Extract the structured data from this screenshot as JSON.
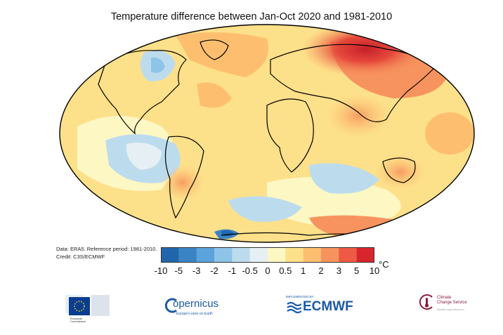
{
  "title": "Temperature difference between Jan-Oct 2020 and 1981-2010",
  "credit": {
    "data_line": "Data: ERA5.  Reference period: 1981-2010.",
    "credit_line": "Credit: C3S/ECMWF"
  },
  "legend": {
    "unit": "°C",
    "ticks": [
      "-10",
      "-5",
      "-3",
      "-2",
      "-1",
      "-0.5",
      "0",
      "0.5",
      "1",
      "2",
      "3",
      "5",
      "10"
    ],
    "colors": [
      "#2166ac",
      "#3a84c6",
      "#5aa3dc",
      "#8ec4e8",
      "#bcdcee",
      "#e6eff4",
      "#fdf7c3",
      "#fde08a",
      "#fdbf6f",
      "#f7935e",
      "#ee5a43",
      "#d7262d"
    ]
  },
  "logos": {
    "ec_caption_1": "European",
    "ec_caption_2": "Commission",
    "copernicus": "opernicus",
    "copernicus_tagline": "Europe's eyes on Earth",
    "ecmwf_small": "IMPLEMENTED BY",
    "ecmwf": "ECMWF",
    "c3s_line1": "Climate",
    "c3s_line2": "Change Service",
    "c3s_url": "climate.copernicus.eu"
  }
}
